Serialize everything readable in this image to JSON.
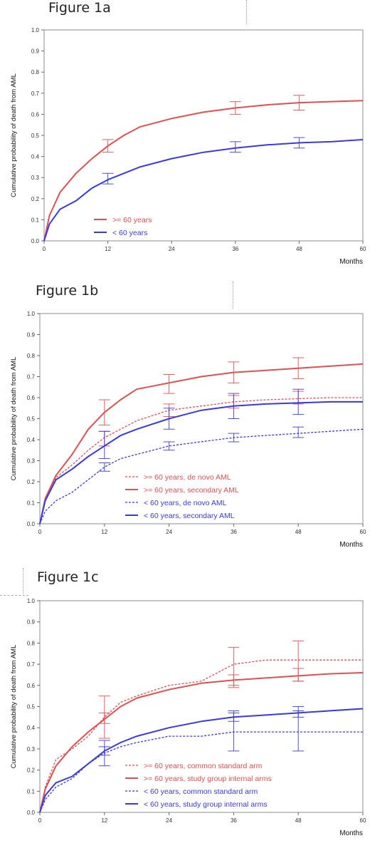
{
  "chart_data": [
    {
      "type": "line",
      "title": "Figure 1a",
      "xlabel": "Months",
      "ylabel": "Cumulative probability of death from AML",
      "xlim": [
        0,
        60
      ],
      "ylim": [
        0,
        1
      ],
      "x_ticks": [
        "0",
        "12",
        "24",
        "36",
        "48",
        "60"
      ],
      "y_ticks": [
        "0.0",
        "0.1",
        "0.2",
        "0.3",
        "0.4",
        "0.5",
        "0.6",
        "0.7",
        "0.8",
        "0.9",
        "1.0"
      ],
      "legend_position": "bottom-left",
      "series": [
        {
          "name": ">= 60 years",
          "color": "#e05050",
          "dash": "solid",
          "x": [
            0,
            1,
            3,
            6,
            9,
            12,
            15,
            18,
            24,
            30,
            36,
            42,
            48,
            54,
            60
          ],
          "values": [
            0,
            0.12,
            0.23,
            0.32,
            0.39,
            0.45,
            0.5,
            0.54,
            0.58,
            0.61,
            0.63,
            0.645,
            0.655,
            0.66,
            0.665
          ],
          "error_bars": [
            {
              "x": 12,
              "low": 0.42,
              "high": 0.48
            },
            {
              "x": 36,
              "low": 0.6,
              "high": 0.66
            },
            {
              "x": 48,
              "low": 0.62,
              "high": 0.69
            }
          ]
        },
        {
          "name": "< 60 years",
          "color": "#3a3ae0",
          "dash": "solid",
          "x": [
            0,
            1,
            3,
            6,
            9,
            12,
            15,
            18,
            24,
            30,
            36,
            42,
            48,
            54,
            60
          ],
          "values": [
            0,
            0.08,
            0.15,
            0.19,
            0.25,
            0.29,
            0.32,
            0.35,
            0.39,
            0.42,
            0.44,
            0.455,
            0.465,
            0.47,
            0.48
          ],
          "error_bars": [
            {
              "x": 12,
              "low": 0.27,
              "high": 0.32
            },
            {
              "x": 36,
              "low": 0.42,
              "high": 0.47
            },
            {
              "x": 48,
              "low": 0.44,
              "high": 0.49
            }
          ]
        }
      ]
    },
    {
      "type": "line",
      "title": "Figure 1b",
      "xlabel": "Months",
      "ylabel": "Cumulative probability of death from AML",
      "xlim": [
        0,
        60
      ],
      "ylim": [
        0,
        1
      ],
      "x_ticks": [
        "0",
        "12",
        "24",
        "36",
        "48",
        "60"
      ],
      "y_ticks": [
        "0.0",
        "0.1",
        "0.2",
        "0.3",
        "0.4",
        "0.5",
        "0.6",
        "0.7",
        "0.8",
        "0.9",
        "1.0"
      ],
      "legend_position": "bottom-center",
      "series": [
        {
          "name": ">= 60 years, de novo AML",
          "color": "#e05050",
          "dash": "dashed",
          "x": [
            0,
            1,
            3,
            6,
            9,
            12,
            15,
            18,
            24,
            30,
            36,
            42,
            48,
            54,
            60
          ],
          "values": [
            0,
            0.11,
            0.22,
            0.28,
            0.35,
            0.41,
            0.45,
            0.49,
            0.54,
            0.56,
            0.58,
            0.59,
            0.595,
            0.6,
            0.6
          ],
          "error_bars": [
            {
              "x": 12,
              "low": 0.37,
              "high": 0.44
            },
            {
              "x": 24,
              "low": 0.51,
              "high": 0.57
            },
            {
              "x": 36,
              "low": 0.55,
              "high": 0.61
            },
            {
              "x": 48,
              "low": 0.57,
              "high": 0.63
            }
          ]
        },
        {
          "name": ">= 60 years, secondary AML",
          "color": "#e05050",
          "dash": "solid",
          "x": [
            0,
            1,
            3,
            6,
            9,
            12,
            15,
            18,
            24,
            30,
            36,
            42,
            48,
            54,
            60
          ],
          "values": [
            0,
            0.12,
            0.23,
            0.33,
            0.45,
            0.53,
            0.59,
            0.64,
            0.67,
            0.7,
            0.72,
            0.73,
            0.74,
            0.75,
            0.76
          ],
          "error_bars": [
            {
              "x": 12,
              "low": 0.47,
              "high": 0.59
            },
            {
              "x": 24,
              "low": 0.62,
              "high": 0.71
            },
            {
              "x": 36,
              "low": 0.67,
              "high": 0.77
            },
            {
              "x": 48,
              "low": 0.69,
              "high": 0.79
            }
          ]
        },
        {
          "name": "< 60 years, de novo AML",
          "color": "#3a3ae0",
          "dash": "dashed",
          "x": [
            0,
            1,
            3,
            6,
            9,
            12,
            15,
            18,
            24,
            30,
            36,
            42,
            48,
            54,
            60
          ],
          "values": [
            0,
            0.06,
            0.11,
            0.15,
            0.21,
            0.27,
            0.31,
            0.33,
            0.37,
            0.39,
            0.41,
            0.42,
            0.43,
            0.44,
            0.45
          ],
          "error_bars": [
            {
              "x": 12,
              "low": 0.25,
              "high": 0.29
            },
            {
              "x": 24,
              "low": 0.35,
              "high": 0.39
            },
            {
              "x": 36,
              "low": 0.39,
              "high": 0.43
            },
            {
              "x": 48,
              "low": 0.41,
              "high": 0.46
            }
          ]
        },
        {
          "name": "< 60 years, secondary AML",
          "color": "#3a3ae0",
          "dash": "solid",
          "x": [
            0,
            1,
            3,
            6,
            9,
            12,
            15,
            18,
            24,
            30,
            36,
            42,
            48,
            54,
            60
          ],
          "values": [
            0,
            0.11,
            0.21,
            0.26,
            0.32,
            0.37,
            0.42,
            0.45,
            0.5,
            0.54,
            0.56,
            0.57,
            0.575,
            0.58,
            0.58
          ],
          "error_bars": [
            {
              "x": 12,
              "low": 0.31,
              "high": 0.44
            },
            {
              "x": 24,
              "low": 0.45,
              "high": 0.55
            },
            {
              "x": 36,
              "low": 0.5,
              "high": 0.62
            },
            {
              "x": 48,
              "low": 0.52,
              "high": 0.64
            }
          ]
        }
      ]
    },
    {
      "type": "line",
      "title": "Figure 1c",
      "xlabel": "Months",
      "ylabel": "Cumulative probability of death from AML",
      "xlim": [
        0,
        60
      ],
      "ylim": [
        0,
        1
      ],
      "x_ticks": [
        "0",
        "12",
        "24",
        "36",
        "48",
        "60"
      ],
      "y_ticks": [
        "0.0",
        "0.1",
        "0.2",
        "0.3",
        "0.4",
        "0.5",
        "0.6",
        "0.7",
        "0.8",
        "0.9",
        "1.0"
      ],
      "legend_position": "bottom-center",
      "series": [
        {
          "name": ">= 60 years, common standard arm",
          "color": "#e05050",
          "dash": "dashed",
          "x": [
            0,
            1,
            3,
            6,
            9,
            12,
            15,
            18,
            24,
            30,
            36,
            42,
            48,
            54,
            60
          ],
          "values": [
            0,
            0.12,
            0.25,
            0.3,
            0.36,
            0.45,
            0.52,
            0.55,
            0.6,
            0.62,
            0.7,
            0.72,
            0.72,
            0.72,
            0.72
          ],
          "error_bars": [
            {
              "x": 12,
              "low": 0.35,
              "high": 0.55
            },
            {
              "x": 36,
              "low": 0.59,
              "high": 0.78
            },
            {
              "x": 48,
              "low": 0.62,
              "high": 0.81
            }
          ]
        },
        {
          "name": ">= 60 years, study group internal arms",
          "color": "#e05050",
          "dash": "solid",
          "x": [
            0,
            1,
            3,
            6,
            9,
            12,
            15,
            18,
            24,
            30,
            36,
            42,
            48,
            54,
            60
          ],
          "values": [
            0,
            0.11,
            0.22,
            0.31,
            0.38,
            0.44,
            0.5,
            0.54,
            0.58,
            0.61,
            0.625,
            0.635,
            0.645,
            0.655,
            0.66
          ],
          "error_bars": [
            {
              "x": 12,
              "low": 0.42,
              "high": 0.47
            },
            {
              "x": 36,
              "low": 0.6,
              "high": 0.65
            },
            {
              "x": 48,
              "low": 0.62,
              "high": 0.68
            }
          ]
        },
        {
          "name": "< 60 years, common standard arm",
          "color": "#3a3ae0",
          "dash": "dashed",
          "x": [
            0,
            1,
            3,
            6,
            9,
            12,
            15,
            18,
            24,
            30,
            36,
            42,
            48,
            54,
            60
          ],
          "values": [
            0,
            0.06,
            0.12,
            0.16,
            0.23,
            0.28,
            0.31,
            0.33,
            0.36,
            0.36,
            0.38,
            0.38,
            0.38,
            0.38,
            0.38
          ],
          "error_bars": [
            {
              "x": 12,
              "low": 0.22,
              "high": 0.34
            },
            {
              "x": 36,
              "low": 0.29,
              "high": 0.48
            },
            {
              "x": 48,
              "low": 0.29,
              "high": 0.48
            }
          ]
        },
        {
          "name": "< 60 years, study group internal arms",
          "color": "#3a3ae0",
          "dash": "solid",
          "x": [
            0,
            1,
            3,
            6,
            9,
            12,
            15,
            18,
            24,
            30,
            36,
            42,
            48,
            54,
            60
          ],
          "values": [
            0,
            0.08,
            0.14,
            0.17,
            0.23,
            0.29,
            0.33,
            0.36,
            0.4,
            0.43,
            0.45,
            0.46,
            0.47,
            0.48,
            0.49
          ],
          "error_bars": [
            {
              "x": 12,
              "low": 0.27,
              "high": 0.31
            },
            {
              "x": 36,
              "low": 0.43,
              "high": 0.47
            },
            {
              "x": 48,
              "low": 0.45,
              "high": 0.5
            }
          ]
        }
      ]
    }
  ]
}
